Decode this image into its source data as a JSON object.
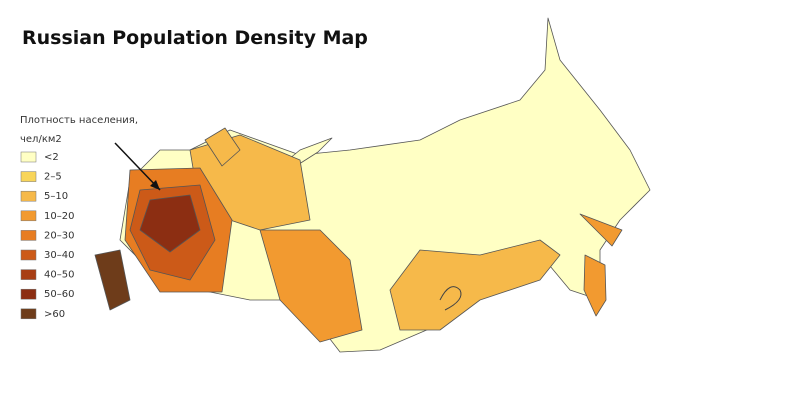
{
  "title": "Russian Population Density Map",
  "legend": {
    "title_lines": [
      "Плотность населения,",
      "чел/км2"
    ],
    "items": [
      {
        "label": "<2",
        "color": "#ffffc4"
      },
      {
        "label": "2–5",
        "color": "#f8d55a"
      },
      {
        "label": "5–10",
        "color": "#f6b94a"
      },
      {
        "label": "10–20",
        "color": "#f29a30"
      },
      {
        "label": "20–30",
        "color": "#e77d22"
      },
      {
        "label": "30–40",
        "color": "#cc5a18"
      },
      {
        "label": "40–50",
        "color": "#a83e14"
      },
      {
        "label": "50–60",
        "color": "#8c2e12"
      },
      {
        "label": ">60",
        "color": "#6e3c1a"
      }
    ]
  }
}
